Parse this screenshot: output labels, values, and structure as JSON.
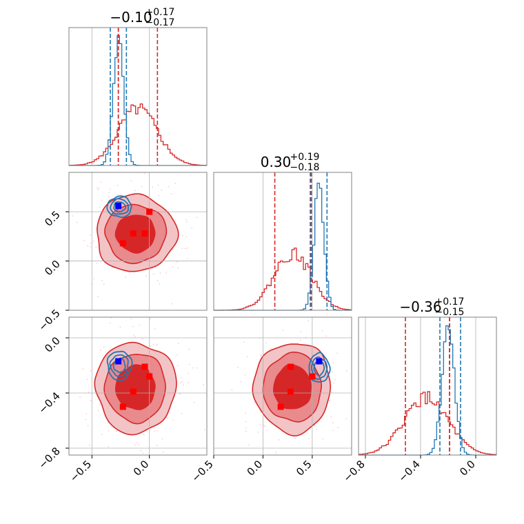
{
  "chart_data": {
    "type": "corner",
    "grid": true,
    "colors": {
      "red": "#d62728",
      "red_fill_outer": "#f2c4c6",
      "red_fill_mid": "#e98a8d",
      "red_fill_inner": "#d62728",
      "blue": "#1f77b4",
      "marker_blue": "#0000ff",
      "marker_red": "#ff0000",
      "grid": "#b0b0b0",
      "spine": "#808080"
    },
    "params": [
      {
        "name": "",
        "range": [
          -0.7,
          0.5
        ],
        "ticks": [
          -0.5,
          0.0
        ],
        "tick_labels": [
          "−0.5",
          "0.0"
        ]
      },
      {
        "name": "",
        "range": [
          -0.5,
          0.9
        ],
        "ticks": [
          -0.5,
          0.0,
          0.5
        ],
        "tick_labels": [
          "−0.5",
          "0.0",
          "0.5"
        ]
      },
      {
        "name": "",
        "range": [
          -0.85,
          0.15
        ],
        "ticks": [
          -0.8,
          -0.4,
          0.0
        ],
        "tick_labels": [
          "−0.8",
          "−0.4",
          "0.0"
        ]
      }
    ],
    "titles": [
      {
        "main": "−0.10",
        "sup": "+0.17",
        "sub": "−0.17"
      },
      {
        "main": "0.30",
        "sup": "+0.19",
        "sub": "−0.18"
      },
      {
        "main": "−0.36",
        "sup": "+0.17",
        "sub": "−0.15"
      }
    ],
    "diagonal": [
      {
        "red": {
          "mean": -0.1,
          "sd": 0.17,
          "quantiles": [
            -0.27,
            0.07
          ]
        },
        "blue": {
          "mean": -0.27,
          "sd": 0.045,
          "quantiles": [
            -0.34,
            -0.2
          ]
        },
        "red_median": -0.27
      },
      {
        "red": {
          "mean": 0.3,
          "sd": 0.19,
          "quantiles": [
            0.12,
            0.49
          ]
        },
        "blue": {
          "mean": 0.57,
          "sd": 0.05,
          "quantiles": [
            0.48,
            0.65
          ]
        },
        "red_median": 0.49
      },
      {
        "red": {
          "mean": -0.36,
          "sd": 0.16,
          "quantiles": [
            -0.51,
            -0.19
          ]
        },
        "blue": {
          "mean": -0.2,
          "sd": 0.045,
          "quantiles": [
            -0.26,
            -0.11
          ]
        },
        "red_median": -0.19
      }
    ],
    "pairs": [
      {
        "x_param": 0,
        "y_param": 1,
        "red_center": [
          -0.12,
          0.28
        ],
        "red_spread": [
          0.17,
          0.19
        ],
        "blue_center": [
          -0.26,
          0.55
        ],
        "blue_spread": [
          0.05,
          0.05
        ],
        "blue_markers": [
          [
            -0.27,
            0.56
          ]
        ],
        "red_markers": [
          [
            -0.14,
            0.28
          ],
          [
            -0.04,
            0.28
          ],
          [
            -0.23,
            0.18
          ],
          [
            0.0,
            0.5
          ]
        ]
      },
      {
        "x_param": 0,
        "y_param": 2,
        "red_center": [
          -0.12,
          -0.36
        ],
        "red_spread": [
          0.17,
          0.16
        ],
        "blue_center": [
          -0.26,
          -0.2
        ],
        "blue_spread": [
          0.05,
          0.05
        ],
        "blue_markers": [
          [
            -0.27,
            -0.17
          ]
        ],
        "red_markers": [
          [
            -0.04,
            -0.21
          ],
          [
            0.0,
            -0.28
          ],
          [
            -0.14,
            -0.39
          ],
          [
            -0.23,
            -0.5
          ]
        ]
      },
      {
        "x_param": 1,
        "y_param": 2,
        "red_center": [
          0.3,
          -0.36
        ],
        "red_spread": [
          0.19,
          0.16
        ],
        "blue_center": [
          0.57,
          -0.22
        ],
        "blue_spread": [
          0.05,
          0.05
        ],
        "blue_markers": [
          [
            0.57,
            -0.17
          ]
        ],
        "red_markers": [
          [
            0.28,
            -0.21
          ],
          [
            0.5,
            -0.28
          ],
          [
            0.28,
            -0.39
          ],
          [
            0.18,
            -0.5
          ]
        ]
      }
    ]
  }
}
